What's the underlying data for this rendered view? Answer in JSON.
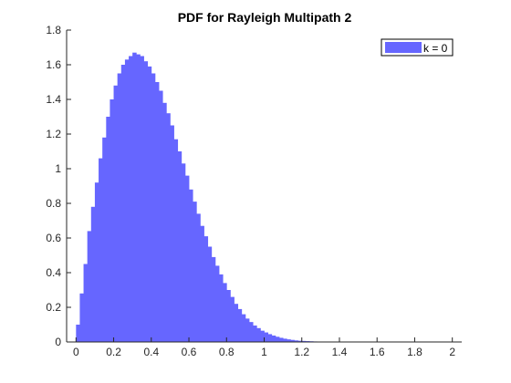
{
  "chart_data": {
    "type": "bar",
    "title": "PDF for Rayleigh Multipath 2",
    "xlabel": "",
    "ylabel": "",
    "xlim": [
      -0.05,
      2.05
    ],
    "ylim": [
      0,
      1.8
    ],
    "xticks": [
      0,
      0.2,
      0.4,
      0.6,
      0.8,
      1,
      1.2,
      1.4,
      1.6,
      1.8,
      2
    ],
    "yticks": [
      0,
      0.2,
      0.4,
      0.6,
      0.8,
      1,
      1.2,
      1.4,
      1.6,
      1.8
    ],
    "xtick_labels": [
      "0",
      "0.2",
      "0.4",
      "0.6",
      "0.8",
      "1",
      "1.2",
      "1.4",
      "1.6",
      "1.8",
      "2"
    ],
    "ytick_labels": [
      "0",
      "0.2",
      "0.4",
      "0.6",
      "0.8",
      "1",
      "1.2",
      "1.4",
      "1.6",
      "1.8"
    ],
    "bar_color": "#6666FF",
    "legend": {
      "position": "top-right",
      "entries": [
        "k = 0"
      ]
    },
    "grid": false,
    "series": [
      {
        "name": "k = 0",
        "x": [
          0.01,
          0.03,
          0.05,
          0.07,
          0.09,
          0.11,
          0.13,
          0.15,
          0.17,
          0.19,
          0.21,
          0.23,
          0.25,
          0.27,
          0.29,
          0.31,
          0.33,
          0.35,
          0.37,
          0.39,
          0.41,
          0.43,
          0.45,
          0.47,
          0.49,
          0.51,
          0.53,
          0.55,
          0.57,
          0.59,
          0.61,
          0.63,
          0.65,
          0.67,
          0.69,
          0.71,
          0.73,
          0.75,
          0.77,
          0.79,
          0.81,
          0.83,
          0.85,
          0.87,
          0.89,
          0.91,
          0.93,
          0.95,
          0.97,
          0.99,
          1.01,
          1.03,
          1.05,
          1.07,
          1.09,
          1.11,
          1.13,
          1.15,
          1.17,
          1.19,
          1.21,
          1.23,
          1.25,
          1.27,
          1.29,
          1.31,
          1.33,
          1.35,
          1.37,
          1.39,
          1.41
        ],
        "values": [
          0.1,
          0.28,
          0.45,
          0.64,
          0.78,
          0.92,
          1.06,
          1.18,
          1.3,
          1.4,
          1.48,
          1.55,
          1.6,
          1.63,
          1.65,
          1.67,
          1.66,
          1.65,
          1.62,
          1.59,
          1.55,
          1.5,
          1.45,
          1.38,
          1.32,
          1.25,
          1.17,
          1.1,
          1.03,
          0.96,
          0.88,
          0.81,
          0.74,
          0.67,
          0.61,
          0.55,
          0.49,
          0.44,
          0.39,
          0.34,
          0.3,
          0.26,
          0.22,
          0.19,
          0.16,
          0.135,
          0.115,
          0.095,
          0.08,
          0.065,
          0.055,
          0.045,
          0.037,
          0.03,
          0.024,
          0.019,
          0.015,
          0.012,
          0.009,
          0.007,
          0.006,
          0.005,
          0.004,
          0.003,
          0.0025,
          0.002,
          0.0015,
          0.001,
          0.001,
          0.0008,
          0.0005
        ]
      }
    ]
  }
}
